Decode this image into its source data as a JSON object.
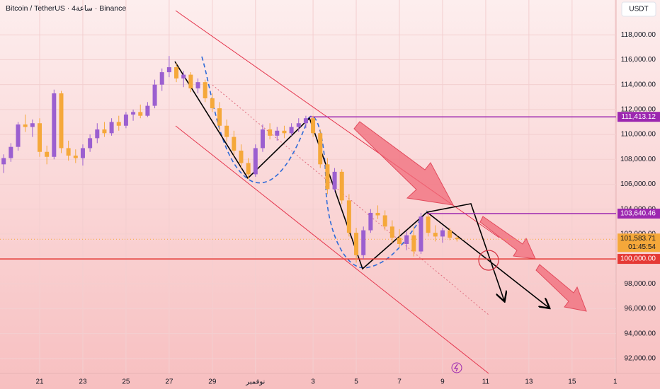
{
  "chart_data": {
    "type": "candlestick",
    "title": "Bitcoin / TetherUS · 4ساعة · Binance",
    "currency": "USDT",
    "categories": [
      null,
      null,
      null,
      null,
      null,
      "21",
      null,
      null,
      null,
      null,
      null,
      "23",
      null,
      null,
      null,
      null,
      null,
      "25",
      null,
      null,
      null,
      null,
      null,
      "27",
      null,
      null,
      null,
      null,
      null,
      "29",
      null,
      null,
      null,
      null,
      null,
      "نوفمبر",
      null,
      null,
      null,
      null,
      null,
      null,
      null,
      "3",
      null,
      null,
      null,
      null,
      null,
      "5",
      null,
      null,
      null,
      null,
      null,
      "7",
      null,
      null,
      null,
      null,
      null,
      "9",
      null,
      null,
      null,
      null,
      null,
      "11",
      null,
      null,
      null,
      null,
      null,
      "13",
      null,
      null,
      null,
      null,
      null,
      "15",
      null,
      null,
      null,
      null,
      null,
      "1"
    ],
    "ohlc": [
      [
        107600,
        108400,
        106900,
        108100
      ],
      [
        108100,
        109300,
        107800,
        109000
      ],
      [
        109000,
        111000,
        108700,
        110800
      ],
      [
        110800,
        111600,
        110200,
        110600
      ],
      [
        110600,
        111200,
        109800,
        110900
      ],
      [
        110900,
        111300,
        108200,
        108600
      ],
      [
        108600,
        109100,
        107600,
        108200
      ],
      [
        108200,
        113600,
        108000,
        113300
      ],
      [
        113300,
        113500,
        108500,
        108900
      ],
      [
        108900,
        109500,
        107900,
        108300
      ],
      [
        108300,
        108800,
        107700,
        108100
      ],
      [
        108100,
        109200,
        107500,
        108900
      ],
      [
        108900,
        110000,
        108600,
        109700
      ],
      [
        109700,
        110900,
        109300,
        110400
      ],
      [
        110400,
        111000,
        109800,
        110100
      ],
      [
        110100,
        111300,
        109900,
        111000
      ],
      [
        111000,
        111500,
        110300,
        110700
      ],
      [
        110700,
        111800,
        110500,
        111600
      ],
      [
        111600,
        112000,
        111100,
        111800
      ],
      [
        111800,
        112400,
        111300,
        111500
      ],
      [
        111500,
        112600,
        111400,
        112300
      ],
      [
        112300,
        114400,
        112100,
        114000
      ],
      [
        114000,
        115300,
        113500,
        115000
      ],
      [
        115000,
        116300,
        114600,
        115400
      ],
      [
        115400,
        115700,
        114200,
        114500
      ],
      [
        114500,
        115100,
        113800,
        114800
      ],
      [
        114800,
        115000,
        113400,
        113700
      ],
      [
        113700,
        114500,
        113300,
        114200
      ],
      [
        114200,
        114400,
        112600,
        112900
      ],
      [
        112900,
        113300,
        111800,
        112100
      ],
      [
        112100,
        112600,
        110300,
        110700
      ],
      [
        110700,
        111200,
        109400,
        109800
      ],
      [
        109800,
        110300,
        108300,
        108700
      ],
      [
        108700,
        109200,
        107300,
        107700
      ],
      [
        107700,
        108100,
        106400,
        106800
      ],
      [
        106800,
        109200,
        106600,
        108900
      ],
      [
        108900,
        110800,
        108600,
        110400
      ],
      [
        110400,
        110900,
        109600,
        109900
      ],
      [
        109900,
        110600,
        109500,
        110300
      ],
      [
        110300,
        110700,
        109700,
        110100
      ],
      [
        110100,
        110900,
        109900,
        110600
      ],
      [
        110600,
        111300,
        110200,
        110900
      ],
      [
        110900,
        111500,
        110500,
        111300
      ],
      [
        111300,
        111500,
        109800,
        110100
      ],
      [
        110100,
        110400,
        107300,
        107600
      ],
      [
        107600,
        108100,
        105200,
        105600
      ],
      [
        105600,
        107300,
        105400,
        107000
      ],
      [
        107000,
        107200,
        104400,
        104700
      ],
      [
        104700,
        105200,
        101800,
        102100
      ],
      [
        102100,
        102500,
        99700,
        100300
      ],
      [
        100300,
        102600,
        100000,
        102300
      ],
      [
        102300,
        104000,
        102100,
        103700
      ],
      [
        103700,
        104300,
        103200,
        103500
      ],
      [
        103500,
        103900,
        102300,
        102600
      ],
      [
        102600,
        103100,
        101300,
        101700
      ],
      [
        101700,
        102400,
        100900,
        101200
      ],
      [
        101200,
        102200,
        100700,
        101900
      ],
      [
        101900,
        102600,
        100200,
        100600
      ],
      [
        100600,
        103700,
        100400,
        103400
      ],
      [
        103400,
        103600,
        101800,
        102100
      ],
      [
        102100,
        102700,
        101400,
        101800
      ],
      [
        101800,
        102500,
        101300,
        102300
      ],
      [
        102300,
        102500,
        101500,
        101700
      ],
      [
        101700,
        101900,
        101400,
        101583.71
      ],
      null,
      null,
      null,
      null,
      null,
      null,
      null,
      null,
      null,
      null,
      null,
      null,
      null,
      null,
      null,
      null,
      null,
      null,
      null,
      null,
      null,
      null
    ],
    "up_color": "#9b5fd0",
    "down_color": "#f5a83a",
    "ylim": [
      90800,
      120800
    ],
    "yticks": [
      {
        "value": 92000,
        "label": "92,000.00"
      },
      {
        "value": 94000,
        "label": "94,000.00"
      },
      {
        "value": 96000,
        "label": "96,000.00"
      },
      {
        "value": 98000,
        "label": "98,000.00"
      },
      {
        "value": 102000,
        "label": "102,000.00"
      },
      {
        "value": 104000,
        "label": "104,000.00"
      },
      {
        "value": 106000,
        "label": "106,000.00"
      },
      {
        "value": 108000,
        "label": "108,000.00"
      },
      {
        "value": 110000,
        "label": "110,000.00"
      },
      {
        "value": 112000,
        "label": "112,000.00"
      },
      {
        "value": 114000,
        "label": "114,000.00"
      },
      {
        "value": 116000,
        "label": "116,000.00"
      },
      {
        "value": 118000,
        "label": "118,000.00"
      }
    ],
    "grid": true,
    "levels": [
      {
        "value": 111413.12,
        "label": "111,413.12",
        "color": "#9c27b0"
      },
      {
        "value": 103640.46,
        "label": "103,640.46",
        "color": "#9c27b0"
      },
      {
        "value": 100000,
        "label": "100,000.00",
        "color": "#e53935"
      }
    ],
    "last_price": {
      "value": 101583.71,
      "label": "101,583.71",
      "countdown": "01:45:54",
      "color": "#f5a83a"
    }
  }
}
